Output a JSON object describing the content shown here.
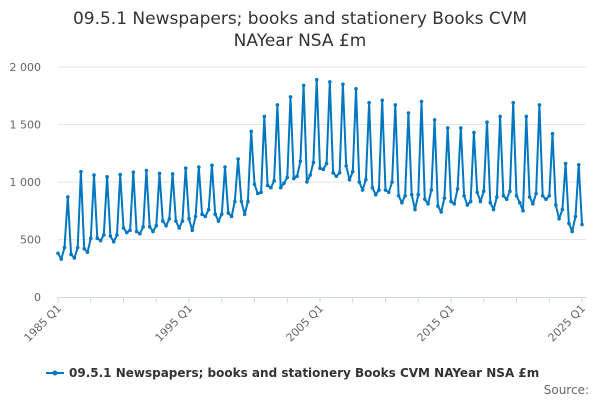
{
  "chart_data": {
    "type": "line",
    "title_lines": [
      "09.5.1 Newspapers; books and stationery Books CVM",
      "NAYear NSA £m"
    ],
    "xlabel": "",
    "ylabel": "",
    "ylim": [
      0,
      2000
    ],
    "yticks": [
      0,
      500,
      1000,
      1500,
      2000
    ],
    "ytick_labels": [
      "0",
      "500",
      "1 000",
      "1 500",
      "2 000"
    ],
    "xtick_labels": [
      "1985 Q1",
      "1995 Q1",
      "2005 Q1",
      "2015 Q1",
      "2025 Q1"
    ],
    "start": "1985 Q1",
    "grid": true,
    "legend_position": "bottom",
    "color": "#0077c0",
    "series": [
      {
        "name": "09.5.1 Newspapers; books and stationery Books CVM NAYear NSA £m",
        "values": [
          380,
          330,
          430,
          870,
          370,
          340,
          430,
          1090,
          420,
          390,
          510,
          1060,
          510,
          490,
          540,
          1045,
          530,
          480,
          540,
          1065,
          600,
          560,
          580,
          1085,
          570,
          550,
          610,
          1100,
          610,
          570,
          620,
          1075,
          660,
          620,
          680,
          1070,
          660,
          600,
          660,
          1120,
          680,
          580,
          700,
          1130,
          720,
          700,
          760,
          1145,
          720,
          660,
          720,
          1130,
          730,
          700,
          830,
          1200,
          830,
          720,
          830,
          1440,
          980,
          900,
          910,
          1570,
          970,
          950,
          1010,
          1670,
          950,
          990,
          1040,
          1740,
          1030,
          1050,
          1180,
          1840,
          1000,
          1060,
          1170,
          1890,
          1120,
          1110,
          1160,
          1870,
          1080,
          1050,
          1080,
          1850,
          1140,
          1020,
          1090,
          1810,
          1000,
          930,
          1020,
          1690,
          950,
          890,
          930,
          1710,
          930,
          910,
          1000,
          1670,
          880,
          820,
          880,
          1600,
          890,
          760,
          890,
          1700,
          850,
          810,
          930,
          1540,
          790,
          740,
          860,
          1470,
          830,
          810,
          940,
          1470,
          880,
          800,
          830,
          1430,
          910,
          830,
          920,
          1520,
          820,
          760,
          870,
          1570,
          880,
          850,
          920,
          1690,
          880,
          820,
          750,
          1570,
          870,
          810,
          900,
          1670,
          880,
          850,
          880,
          1420,
          800,
          680,
          760,
          1160,
          640,
          570,
          700,
          1150,
          630
        ]
      }
    ],
    "source_label": "Source:"
  }
}
